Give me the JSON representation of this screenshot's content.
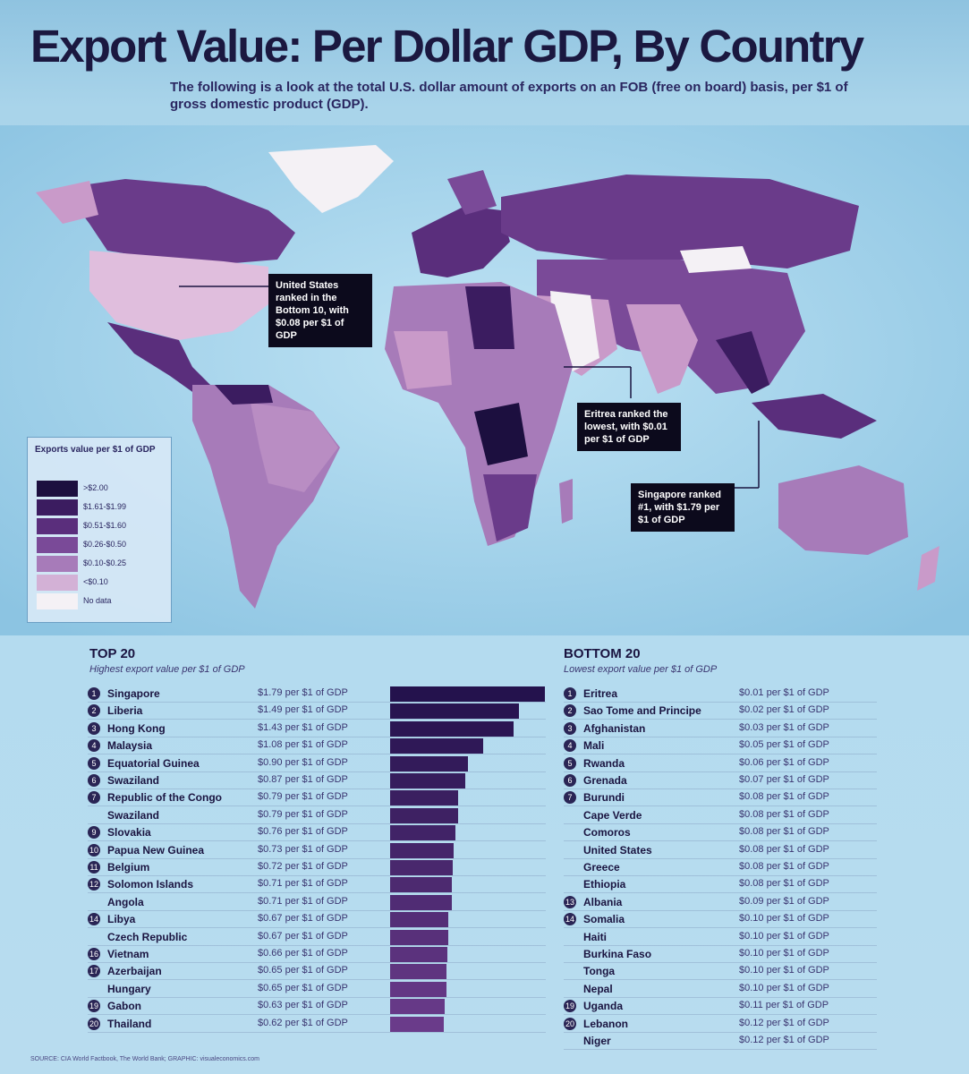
{
  "title": "Export Value: Per Dollar GDP, By Country",
  "subtitle": "The following is a look at the total U.S. dollar amount of exports on an FOB (free on board) basis, per $1 of gross domestic product (GDP).",
  "colors": {
    "background": "#a9d4ea",
    "title": "#1b1840",
    "bar_top": "#24124d",
    "bar_bottom": "#6a3b8a"
  },
  "callouts": {
    "united_states": "United States ranked in the Bottom 10, with $0.08 per $1 of GDP",
    "eritrea": "Eritrea ranked the lowest, with $0.01 per $1 of GDP",
    "singapore": "Singapore ranked #1, with $1.79 per $1 of GDP"
  },
  "legend": {
    "title": "Exports value per $1 of GDP",
    "items": [
      {
        "label": ">$2.00",
        "color": "#1c0f3f"
      },
      {
        "label": "$1.61-$1.99",
        "color": "#3b1c60"
      },
      {
        "label": "$0.51-$1.60",
        "color": "#5a2e7c"
      },
      {
        "label": "$0.26-$0.50",
        "color": "#7a4a98"
      },
      {
        "label": "$0.10-$0.25",
        "color": "#a77bb9"
      },
      {
        "label": "<$0.10",
        "color": "#d3b1d6"
      },
      {
        "label": "No data",
        "color": "#f4f1f5"
      }
    ]
  },
  "top": {
    "title": "TOP 20",
    "subtitle": "Highest export value per $1 of GDP"
  },
  "bottom": {
    "title": "BOTTOM 20",
    "subtitle": "Lowest export value per $1 of GDP"
  },
  "source": "SOURCE: CIA World Factbook, The World Bank; GRAPHIC: visualeconomics.com",
  "chart_data": [
    {
      "type": "bar",
      "title": "TOP 20",
      "subtitle": "Highest export value per $1 of GDP",
      "categories": [
        "Singapore",
        "Liberia",
        "Hong Kong",
        "Malaysia",
        "Equatorial Guinea",
        "Swaziland",
        "Republic of the Congo",
        "Swaziland",
        "Slovakia",
        "Papua New Guinea",
        "Belgium",
        "Solomon Islands",
        "Angola",
        "Libya",
        "Czech Republic",
        "Vietnam",
        "Azerbaijan",
        "Hungary",
        "Gabon",
        "Thailand"
      ],
      "ranks": [
        "1",
        "2",
        "3",
        "4",
        "5",
        "6",
        "7",
        "",
        "9",
        "10",
        "11",
        "12",
        "",
        "14",
        "",
        "16",
        "17",
        "",
        "19",
        "20"
      ],
      "value_labels": [
        "$1.79 per $1 of GDP",
        "$1.49 per $1 of GDP",
        "$1.43 per $1 of GDP",
        "$1.08 per $1 of GDP",
        "$0.90 per $1 of GDP",
        "$0.87 per $1 of GDP",
        "$0.79 per $1 of GDP",
        "$0.79 per $1 of GDP",
        "$0.76 per $1 of GDP",
        "$0.73 per $1 of GDP",
        "$0.72 per $1 of GDP",
        "$0.71 per $1 of GDP",
        "$0.71 per $1 of GDP",
        "$0.67 per $1 of GDP",
        "$0.67 per $1 of GDP",
        "$0.66 per $1 of GDP",
        "$0.65 per $1 of GDP",
        "$0.65 per $1 of GDP",
        "$0.63 per $1 of GDP",
        "$0.62 per $1 of GDP"
      ],
      "values": [
        1.79,
        1.49,
        1.43,
        1.08,
        0.9,
        0.87,
        0.79,
        0.79,
        0.76,
        0.73,
        0.72,
        0.71,
        0.71,
        0.67,
        0.67,
        0.66,
        0.65,
        0.65,
        0.63,
        0.62
      ],
      "ylim": [
        0,
        1.8
      ]
    },
    {
      "type": "table",
      "title": "BOTTOM 20",
      "subtitle": "Lowest export value per $1 of GDP",
      "categories": [
        "Eritrea",
        "Sao Tome and Principe",
        "Afghanistan",
        "Mali",
        "Rwanda",
        "Grenada",
        "Burundi",
        "Cape Verde",
        "Comoros",
        "United States",
        "Greece",
        "Ethiopia",
        "Albania",
        "Somalia",
        "Haiti",
        "Burkina Faso",
        "Tonga",
        "Nepal",
        "Uganda",
        "Lebanon",
        "Niger"
      ],
      "ranks": [
        "1",
        "2",
        "3",
        "4",
        "5",
        "6",
        "7",
        "",
        "",
        "",
        "",
        "",
        "13",
        "14",
        "",
        "",
        "",
        "",
        "19",
        "20",
        ""
      ],
      "value_labels": [
        "$0.01 per $1 of GDP",
        "$0.02 per $1 of GDP",
        "$0.03 per $1 of GDP",
        "$0.05 per $1 of GDP",
        "$0.06 per $1 of GDP",
        "$0.07 per $1 of GDP",
        "$0.08 per $1 of GDP",
        "$0.08 per $1 of GDP",
        "$0.08 per $1 of GDP",
        "$0.08 per $1 of GDP",
        "$0.08 per $1 of GDP",
        "$0.08 per $1 of GDP",
        "$0.09 per $1 of GDP",
        "$0.10 per $1 of GDP",
        "$0.10 per $1 of GDP",
        "$0.10 per $1 of GDP",
        "$0.10 per $1 of GDP",
        "$0.10 per $1 of GDP",
        "$0.11 per $1 of GDP",
        "$0.12 per $1 of GDP",
        "$0.12 per $1 of GDP"
      ],
      "values": [
        0.01,
        0.02,
        0.03,
        0.05,
        0.06,
        0.07,
        0.08,
        0.08,
        0.08,
        0.08,
        0.08,
        0.08,
        0.09,
        0.1,
        0.1,
        0.1,
        0.1,
        0.1,
        0.11,
        0.12,
        0.12
      ]
    }
  ]
}
